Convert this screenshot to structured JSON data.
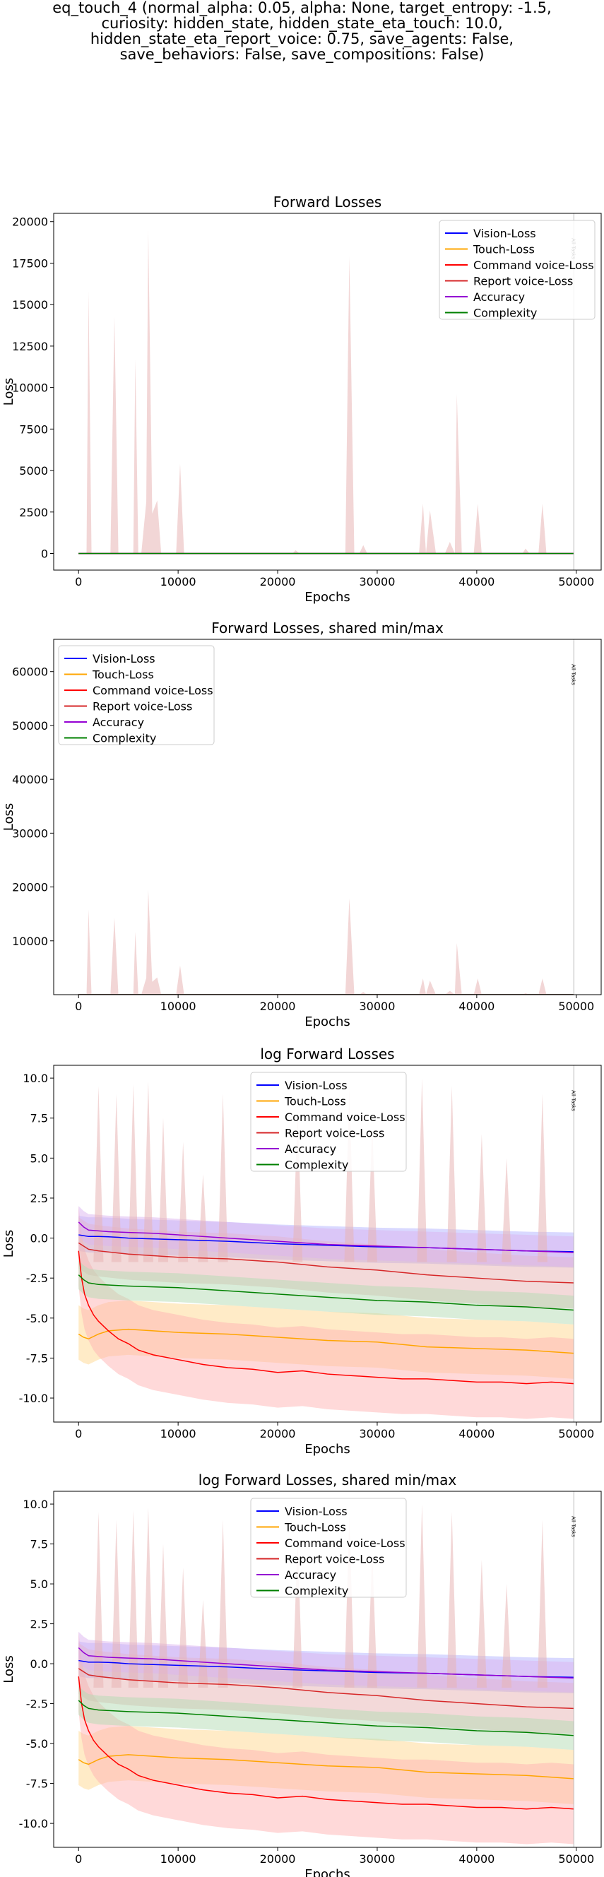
{
  "figure": {
    "title_lines": [
      "eq_touch_4 (normal_alpha: 0.05, alpha: None, target_entropy: -1.5,",
      "curiosity: hidden_state, hidden_state_eta_touch: 10.0,",
      "hidden_state_eta_report_voice: 0.75, save_agents: False,",
      "save_behaviors: False, save_compositions: False)"
    ]
  },
  "chart_data": [
    {
      "type": "line",
      "title": "Forward Losses",
      "xlabel": "Epochs",
      "ylabel": "Loss",
      "xlim": [
        -2500,
        52500
      ],
      "ylim": [
        -1000,
        20500
      ],
      "xticks": [
        0,
        10000,
        20000,
        30000,
        40000,
        50000
      ],
      "yticks": [
        0,
        2500,
        5000,
        7500,
        10000,
        12500,
        15000,
        17500,
        20000
      ],
      "log": false,
      "grid": false,
      "legend_position": "top-right",
      "marker": {
        "x": 49750,
        "label": "All Tasks"
      },
      "series": [
        {
          "name": "Vision-Loss",
          "color": "#0000ff"
        },
        {
          "name": "Touch-Loss",
          "color": "#ffa500"
        },
        {
          "name": "Command voice-Loss",
          "color": "#ff0000"
        },
        {
          "name": "Report voice-Loss",
          "color": "#d62728"
        },
        {
          "name": "Accuracy",
          "color": "#9400d3"
        },
        {
          "name": "Complexity",
          "color": "#008000"
        }
      ],
      "band": {
        "color": "#e8b4b4",
        "points": [
          [
            0,
            0
          ],
          [
            800,
            0
          ],
          [
            1000,
            15800
          ],
          [
            1300,
            0
          ],
          [
            3200,
            0
          ],
          [
            3600,
            14300
          ],
          [
            4000,
            0
          ],
          [
            5500,
            0
          ],
          [
            5700,
            11700
          ],
          [
            6000,
            0
          ],
          [
            6300,
            0
          ],
          [
            6800,
            3100
          ],
          [
            7000,
            19500
          ],
          [
            7400,
            2400
          ],
          [
            7900,
            3200
          ],
          [
            8300,
            0
          ],
          [
            9800,
            0
          ],
          [
            10200,
            5400
          ],
          [
            10600,
            0
          ],
          [
            21500,
            0
          ],
          [
            21800,
            200
          ],
          [
            22200,
            0
          ],
          [
            26800,
            0
          ],
          [
            27200,
            17900
          ],
          [
            27700,
            0
          ],
          [
            28200,
            0
          ],
          [
            28600,
            500
          ],
          [
            29000,
            0
          ],
          [
            34200,
            0
          ],
          [
            34600,
            3000
          ],
          [
            34900,
            0
          ],
          [
            35300,
            2600
          ],
          [
            35900,
            0
          ],
          [
            36800,
            0
          ],
          [
            37300,
            700
          ],
          [
            37800,
            0
          ],
          [
            38000,
            9600
          ],
          [
            38500,
            0
          ],
          [
            39700,
            0
          ],
          [
            40100,
            3000
          ],
          [
            40500,
            0
          ],
          [
            44600,
            0
          ],
          [
            44900,
            300
          ],
          [
            45300,
            0
          ],
          [
            46200,
            0
          ],
          [
            46600,
            3000
          ],
          [
            47000,
            0
          ],
          [
            49750,
            0
          ]
        ]
      },
      "lines": {
        "y": 0
      }
    },
    {
      "type": "line",
      "title": "Forward Losses, shared min/max",
      "xlabel": "Epochs",
      "ylabel": "Loss",
      "xlim": [
        -2500,
        52500
      ],
      "ylim": [
        0,
        66000
      ],
      "xticks": [
        0,
        10000,
        20000,
        30000,
        40000,
        50000
      ],
      "yticks": [
        10000,
        20000,
        30000,
        40000,
        50000,
        60000
      ],
      "log": false,
      "grid": false,
      "legend_position": "top-left",
      "marker": {
        "x": 49750,
        "label": "All Tasks"
      },
      "series": [
        {
          "name": "Vision-Loss",
          "color": "#0000ff"
        },
        {
          "name": "Touch-Loss",
          "color": "#ffa500"
        },
        {
          "name": "Command voice-Loss",
          "color": "#ff0000"
        },
        {
          "name": "Report voice-Loss",
          "color": "#d62728"
        },
        {
          "name": "Accuracy",
          "color": "#9400d3"
        },
        {
          "name": "Complexity",
          "color": "#008000"
        }
      ],
      "band": {
        "color": "#e8b4b4",
        "points": [
          [
            0,
            0
          ],
          [
            800,
            0
          ],
          [
            1000,
            15800
          ],
          [
            1300,
            0
          ],
          [
            3200,
            0
          ],
          [
            3600,
            14300
          ],
          [
            4000,
            0
          ],
          [
            5500,
            0
          ],
          [
            5700,
            11700
          ],
          [
            6000,
            0
          ],
          [
            6300,
            0
          ],
          [
            6800,
            3100
          ],
          [
            7000,
            19500
          ],
          [
            7400,
            2400
          ],
          [
            7900,
            3200
          ],
          [
            8300,
            0
          ],
          [
            9800,
            0
          ],
          [
            10200,
            5400
          ],
          [
            10600,
            0
          ],
          [
            21500,
            0
          ],
          [
            21800,
            200
          ],
          [
            22200,
            0
          ],
          [
            26800,
            0
          ],
          [
            27200,
            17900
          ],
          [
            27700,
            0
          ],
          [
            28200,
            0
          ],
          [
            28600,
            500
          ],
          [
            29000,
            0
          ],
          [
            34200,
            0
          ],
          [
            34600,
            3000
          ],
          [
            34900,
            0
          ],
          [
            35300,
            2600
          ],
          [
            35900,
            0
          ],
          [
            36800,
            0
          ],
          [
            37300,
            700
          ],
          [
            37800,
            0
          ],
          [
            38000,
            9600
          ],
          [
            38500,
            0
          ],
          [
            39700,
            0
          ],
          [
            40100,
            3000
          ],
          [
            40500,
            0
          ],
          [
            44600,
            0
          ],
          [
            44900,
            300
          ],
          [
            45300,
            0
          ],
          [
            46200,
            0
          ],
          [
            46600,
            3000
          ],
          [
            47000,
            0
          ],
          [
            49750,
            0
          ]
        ]
      },
      "lines": {
        "y": 0
      }
    },
    {
      "type": "line",
      "title": "log Forward Losses",
      "xlabel": "Epochs",
      "ylabel": "Loss",
      "xlim": [
        -2500,
        52500
      ],
      "ylim": [
        -11.5,
        10.8
      ],
      "xticks": [
        0,
        10000,
        20000,
        30000,
        40000,
        50000
      ],
      "yticks": [
        -10.0,
        -7.5,
        -5.0,
        -2.5,
        0.0,
        2.5,
        5.0,
        7.5,
        10.0
      ],
      "log": true,
      "grid": false,
      "legend_position": "top-center",
      "marker": {
        "x": 49750,
        "label": "All Tasks"
      },
      "series": [
        {
          "name": "Vision-Loss",
          "color": "#0000ff",
          "band": "#b4b4ff",
          "x": [
            0,
            500,
            1000,
            2000,
            3000,
            4000,
            5000,
            7500,
            10000,
            15000,
            20000,
            25000,
            30000,
            35000,
            40000,
            45000,
            49750
          ],
          "y": [
            0.2,
            0.15,
            0.1,
            0.1,
            0.08,
            0.05,
            0.0,
            -0.05,
            -0.1,
            -0.2,
            -0.35,
            -0.45,
            -0.55,
            -0.6,
            -0.7,
            -0.8,
            -0.85
          ]
        },
        {
          "name": "Touch-Loss",
          "color": "#ffa500",
          "band": "#ffd890",
          "x": [
            0,
            500,
            1000,
            2000,
            3000,
            5000,
            7500,
            10000,
            15000,
            20000,
            25000,
            30000,
            35000,
            40000,
            45000,
            49750
          ],
          "y": [
            -6.0,
            -6.2,
            -6.3,
            -6.0,
            -5.8,
            -5.7,
            -5.8,
            -5.9,
            -6.0,
            -6.2,
            -6.4,
            -6.5,
            -6.8,
            -6.9,
            -7.0,
            -7.2
          ]
        },
        {
          "name": "Command voice-Loss",
          "color": "#ff0000",
          "band": "#ffb4b4",
          "x": [
            0,
            300,
            600,
            1000,
            1500,
            2000,
            3000,
            4000,
            5000,
            6000,
            7500,
            10000,
            12500,
            15000,
            17500,
            20000,
            22500,
            25000,
            27500,
            30000,
            32500,
            35000,
            37500,
            40000,
            42500,
            45000,
            47500,
            49750
          ],
          "y": [
            -0.8,
            -2.5,
            -3.5,
            -4.2,
            -4.8,
            -5.2,
            -5.8,
            -6.3,
            -6.6,
            -7.0,
            -7.3,
            -7.6,
            -7.9,
            -8.1,
            -8.2,
            -8.4,
            -8.3,
            -8.5,
            -8.6,
            -8.7,
            -8.8,
            -8.8,
            -8.9,
            -9.0,
            -9.0,
            -9.1,
            -9.0,
            -9.1
          ]
        },
        {
          "name": "Report voice-Loss",
          "color": "#d62728",
          "band": "#e8b4b4",
          "x": [
            0,
            500,
            1000,
            2000,
            5000,
            10000,
            15000,
            20000,
            25000,
            30000,
            35000,
            40000,
            45000,
            49750
          ],
          "y": [
            -0.3,
            -0.5,
            -0.7,
            -0.8,
            -1.0,
            -1.2,
            -1.3,
            -1.5,
            -1.8,
            -2.0,
            -2.3,
            -2.5,
            -2.7,
            -2.8
          ]
        },
        {
          "name": "Accuracy",
          "color": "#9400d3",
          "band": "#dcb4f0",
          "x": [
            0,
            500,
            1000,
            2000,
            3000,
            5000,
            7500,
            10000,
            15000,
            20000,
            25000,
            30000,
            35000,
            40000,
            45000,
            49750
          ],
          "y": [
            1.0,
            0.7,
            0.5,
            0.45,
            0.4,
            0.35,
            0.3,
            0.2,
            0.0,
            -0.2,
            -0.4,
            -0.5,
            -0.6,
            -0.7,
            -0.8,
            -0.9
          ]
        },
        {
          "name": "Complexity",
          "color": "#008000",
          "band": "#b4dcb4",
          "x": [
            0,
            500,
            1000,
            2000,
            5000,
            10000,
            15000,
            20000,
            25000,
            30000,
            35000,
            40000,
            45000,
            49750
          ],
          "y": [
            -2.3,
            -2.6,
            -2.8,
            -2.9,
            -3.0,
            -3.1,
            -3.3,
            -3.5,
            -3.7,
            -3.9,
            -4.0,
            -4.2,
            -4.3,
            -4.5
          ]
        }
      ]
    },
    {
      "type": "line",
      "title": "log Forward Losses, shared min/max",
      "xlabel": "Epochs",
      "ylabel": "Loss",
      "xlim": [
        -2500,
        52500
      ],
      "ylim": [
        -11.5,
        10.8
      ],
      "xticks": [
        0,
        10000,
        20000,
        30000,
        40000,
        50000
      ],
      "yticks": [
        -10.0,
        -7.5,
        -5.0,
        -2.5,
        0.0,
        2.5,
        5.0,
        7.5,
        10.0
      ],
      "log": true,
      "grid": false,
      "legend_position": "top-center",
      "marker": {
        "x": 49750,
        "label": "All Tasks"
      },
      "series": [
        {
          "name": "Vision-Loss",
          "color": "#0000ff",
          "band": "#b4b4ff",
          "x": [
            0,
            500,
            1000,
            2000,
            3000,
            4000,
            5000,
            7500,
            10000,
            15000,
            20000,
            25000,
            30000,
            35000,
            40000,
            45000,
            49750
          ],
          "y": [
            0.2,
            0.15,
            0.1,
            0.1,
            0.08,
            0.05,
            0.0,
            -0.05,
            -0.1,
            -0.2,
            -0.35,
            -0.45,
            -0.55,
            -0.6,
            -0.7,
            -0.8,
            -0.85
          ]
        },
        {
          "name": "Touch-Loss",
          "color": "#ffa500",
          "band": "#ffd890",
          "x": [
            0,
            500,
            1000,
            2000,
            3000,
            5000,
            7500,
            10000,
            15000,
            20000,
            25000,
            30000,
            35000,
            40000,
            45000,
            49750
          ],
          "y": [
            -6.0,
            -6.2,
            -6.3,
            -6.0,
            -5.8,
            -5.7,
            -5.8,
            -5.9,
            -6.0,
            -6.2,
            -6.4,
            -6.5,
            -6.8,
            -6.9,
            -7.0,
            -7.2
          ]
        },
        {
          "name": "Command voice-Loss",
          "color": "#ff0000",
          "band": "#ffb4b4",
          "x": [
            0,
            300,
            600,
            1000,
            1500,
            2000,
            3000,
            4000,
            5000,
            6000,
            7500,
            10000,
            12500,
            15000,
            17500,
            20000,
            22500,
            25000,
            27500,
            30000,
            32500,
            35000,
            37500,
            40000,
            42500,
            45000,
            47500,
            49750
          ],
          "y": [
            -0.8,
            -2.5,
            -3.5,
            -4.2,
            -4.8,
            -5.2,
            -5.8,
            -6.3,
            -6.6,
            -7.0,
            -7.3,
            -7.6,
            -7.9,
            -8.1,
            -8.2,
            -8.4,
            -8.3,
            -8.5,
            -8.6,
            -8.7,
            -8.8,
            -8.8,
            -8.9,
            -9.0,
            -9.0,
            -9.1,
            -9.0,
            -9.1
          ]
        },
        {
          "name": "Report voice-Loss",
          "color": "#d62728",
          "band": "#e8b4b4",
          "x": [
            0,
            500,
            1000,
            2000,
            5000,
            10000,
            15000,
            20000,
            25000,
            30000,
            35000,
            40000,
            45000,
            49750
          ],
          "y": [
            -0.3,
            -0.5,
            -0.7,
            -0.8,
            -1.0,
            -1.2,
            -1.3,
            -1.5,
            -1.8,
            -2.0,
            -2.3,
            -2.5,
            -2.7,
            -2.8
          ]
        },
        {
          "name": "Accuracy",
          "color": "#9400d3",
          "band": "#dcb4f0",
          "x": [
            0,
            500,
            1000,
            2000,
            3000,
            5000,
            7500,
            10000,
            15000,
            20000,
            25000,
            30000,
            35000,
            40000,
            45000,
            49750
          ],
          "y": [
            1.0,
            0.7,
            0.5,
            0.45,
            0.4,
            0.35,
            0.3,
            0.2,
            0.0,
            -0.2,
            -0.4,
            -0.5,
            -0.6,
            -0.7,
            -0.8,
            -0.9
          ]
        },
        {
          "name": "Complexity",
          "color": "#008000",
          "band": "#b4dcb4",
          "x": [
            0,
            500,
            1000,
            2000,
            5000,
            10000,
            15000,
            20000,
            25000,
            30000,
            35000,
            40000,
            45000,
            49750
          ],
          "y": [
            -2.3,
            -2.6,
            -2.8,
            -2.9,
            -3.0,
            -3.1,
            -3.3,
            -3.5,
            -3.7,
            -3.9,
            -4.0,
            -4.2,
            -4.3,
            -4.5
          ]
        }
      ]
    }
  ]
}
